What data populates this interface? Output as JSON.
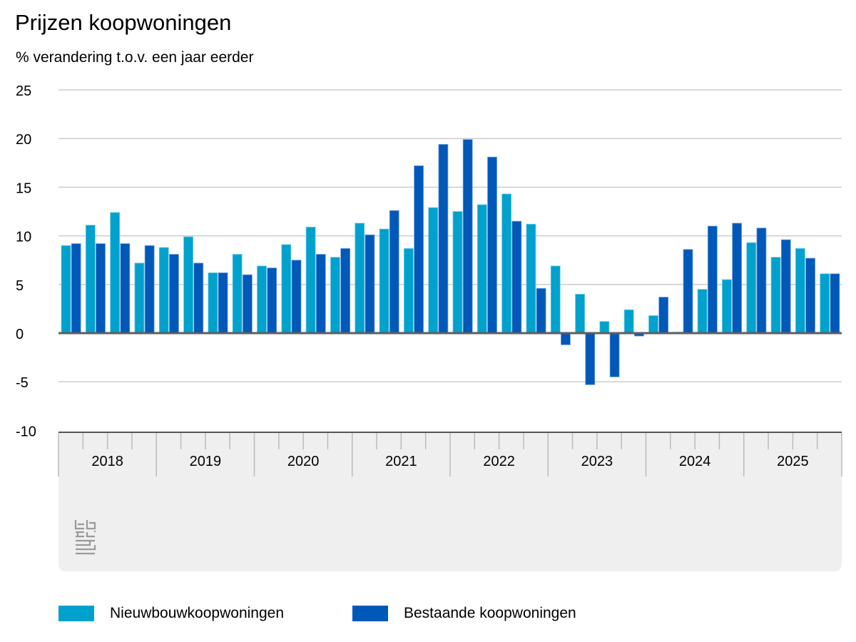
{
  "chart_data": {
    "type": "bar",
    "title": "Prijzen koopwoningen",
    "subtitle": "% verandering t.o.v. een jaar eerder",
    "xlabel": "",
    "ylabel": "% verandering t.o.v. een jaar eerder",
    "ylim": [
      -10,
      25
    ],
    "yticks": [
      "25",
      "20",
      "15",
      "10",
      "5",
      "0",
      "-5",
      "-10"
    ],
    "ytick_values": [
      25,
      20,
      15,
      10,
      5,
      0,
      -5,
      -10
    ],
    "years": [
      "2018",
      "2019",
      "2020",
      "2021",
      "2022",
      "2023",
      "2024",
      "2025"
    ],
    "categories": [
      "2018Q1",
      "2018Q2",
      "2018Q3",
      "2018Q4",
      "2019Q1",
      "2019Q2",
      "2019Q3",
      "2019Q4",
      "2020Q1",
      "2020Q2",
      "2020Q3",
      "2020Q4",
      "2021Q1",
      "2021Q2",
      "2021Q3",
      "2021Q4",
      "2022Q1",
      "2022Q2",
      "2022Q3",
      "2022Q4",
      "2023Q1",
      "2023Q2",
      "2023Q3",
      "2023Q4",
      "2024Q1",
      "2024Q2",
      "2024Q3",
      "2024Q4",
      "2025Q1",
      "2025Q2",
      "2025Q3",
      "2025Q4"
    ],
    "series": [
      {
        "name": "Nieuwbouwkoopwoningen",
        "color": "#00a1cd",
        "values": [
          9.0,
          11.1,
          12.4,
          7.2,
          8.8,
          9.9,
          6.2,
          8.1,
          6.9,
          9.1,
          10.9,
          7.8,
          11.3,
          10.7,
          8.7,
          12.9,
          12.5,
          13.2,
          14.3,
          11.2,
          6.9,
          4.0,
          1.2,
          2.4,
          1.8,
          0.1,
          4.5,
          5.5,
          9.3,
          7.8,
          8.7,
          6.1
        ]
      },
      {
        "name": "Bestaande koopwoningen",
        "color": "#0058b8",
        "values": [
          9.2,
          9.2,
          9.2,
          9.0,
          8.1,
          7.2,
          6.2,
          6.0,
          6.7,
          7.5,
          8.1,
          8.7,
          10.1,
          12.6,
          17.2,
          19.4,
          19.9,
          18.1,
          11.5,
          4.6,
          -1.2,
          -5.3,
          -4.5,
          -0.3,
          3.7,
          8.6,
          11.0,
          11.3,
          10.8,
          9.6,
          7.7,
          6.1
        ]
      }
    ],
    "grid": true,
    "legend_position": "bottom-left"
  },
  "logo_text": "cbs"
}
